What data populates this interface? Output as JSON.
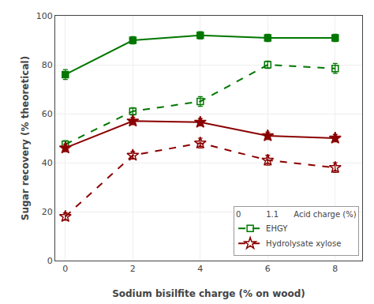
{
  "chart_data": {
    "type": "line",
    "xlabel": "Sodium bisilfite charge (% on wood)",
    "ylabel": "Sugar recovery (% theoretical)",
    "legend_title": "0          1.1      Acid charge (%)",
    "x": [
      0,
      2,
      4,
      6,
      8
    ],
    "series": [
      {
        "name": "EHGY",
        "color": "#007700",
        "line_style": "dash",
        "marker": "square-open",
        "values": [
          47.5,
          61,
          65,
          80,
          78.5
        ],
        "yerr": [
          1.5,
          1.5,
          2,
          1.5,
          2
        ]
      },
      {
        "name": "EHGY",
        "color": "#007700",
        "line_style": "solid",
        "marker": "square",
        "values": [
          76,
          90,
          92,
          91,
          91
        ],
        "yerr": [
          2,
          1.5,
          1.5,
          1.5,
          1.5
        ]
      },
      {
        "name": "Hydrolysate xylose",
        "color": "#8B0000",
        "line_style": "dash",
        "marker": "star-open",
        "values": [
          18,
          43,
          48,
          41,
          38
        ],
        "yerr": [
          1.5,
          1.5,
          2,
          2,
          2
        ]
      },
      {
        "name": "Hydrolysate xylose",
        "color": "#8B0000",
        "line_style": "solid",
        "marker": "star",
        "values": [
          46,
          57,
          56.5,
          51,
          50
        ],
        "yerr": [
          1.5,
          1.5,
          1.5,
          1.5,
          1.5
        ]
      }
    ],
    "xlim": [
      -0.3,
      8.8
    ],
    "ylim": [
      0,
      100
    ],
    "xticks": [
      0,
      2,
      4,
      6,
      8
    ],
    "yticks": [
      0,
      20,
      40,
      60,
      80,
      100
    ],
    "grid": true,
    "legend": "lower right"
  }
}
